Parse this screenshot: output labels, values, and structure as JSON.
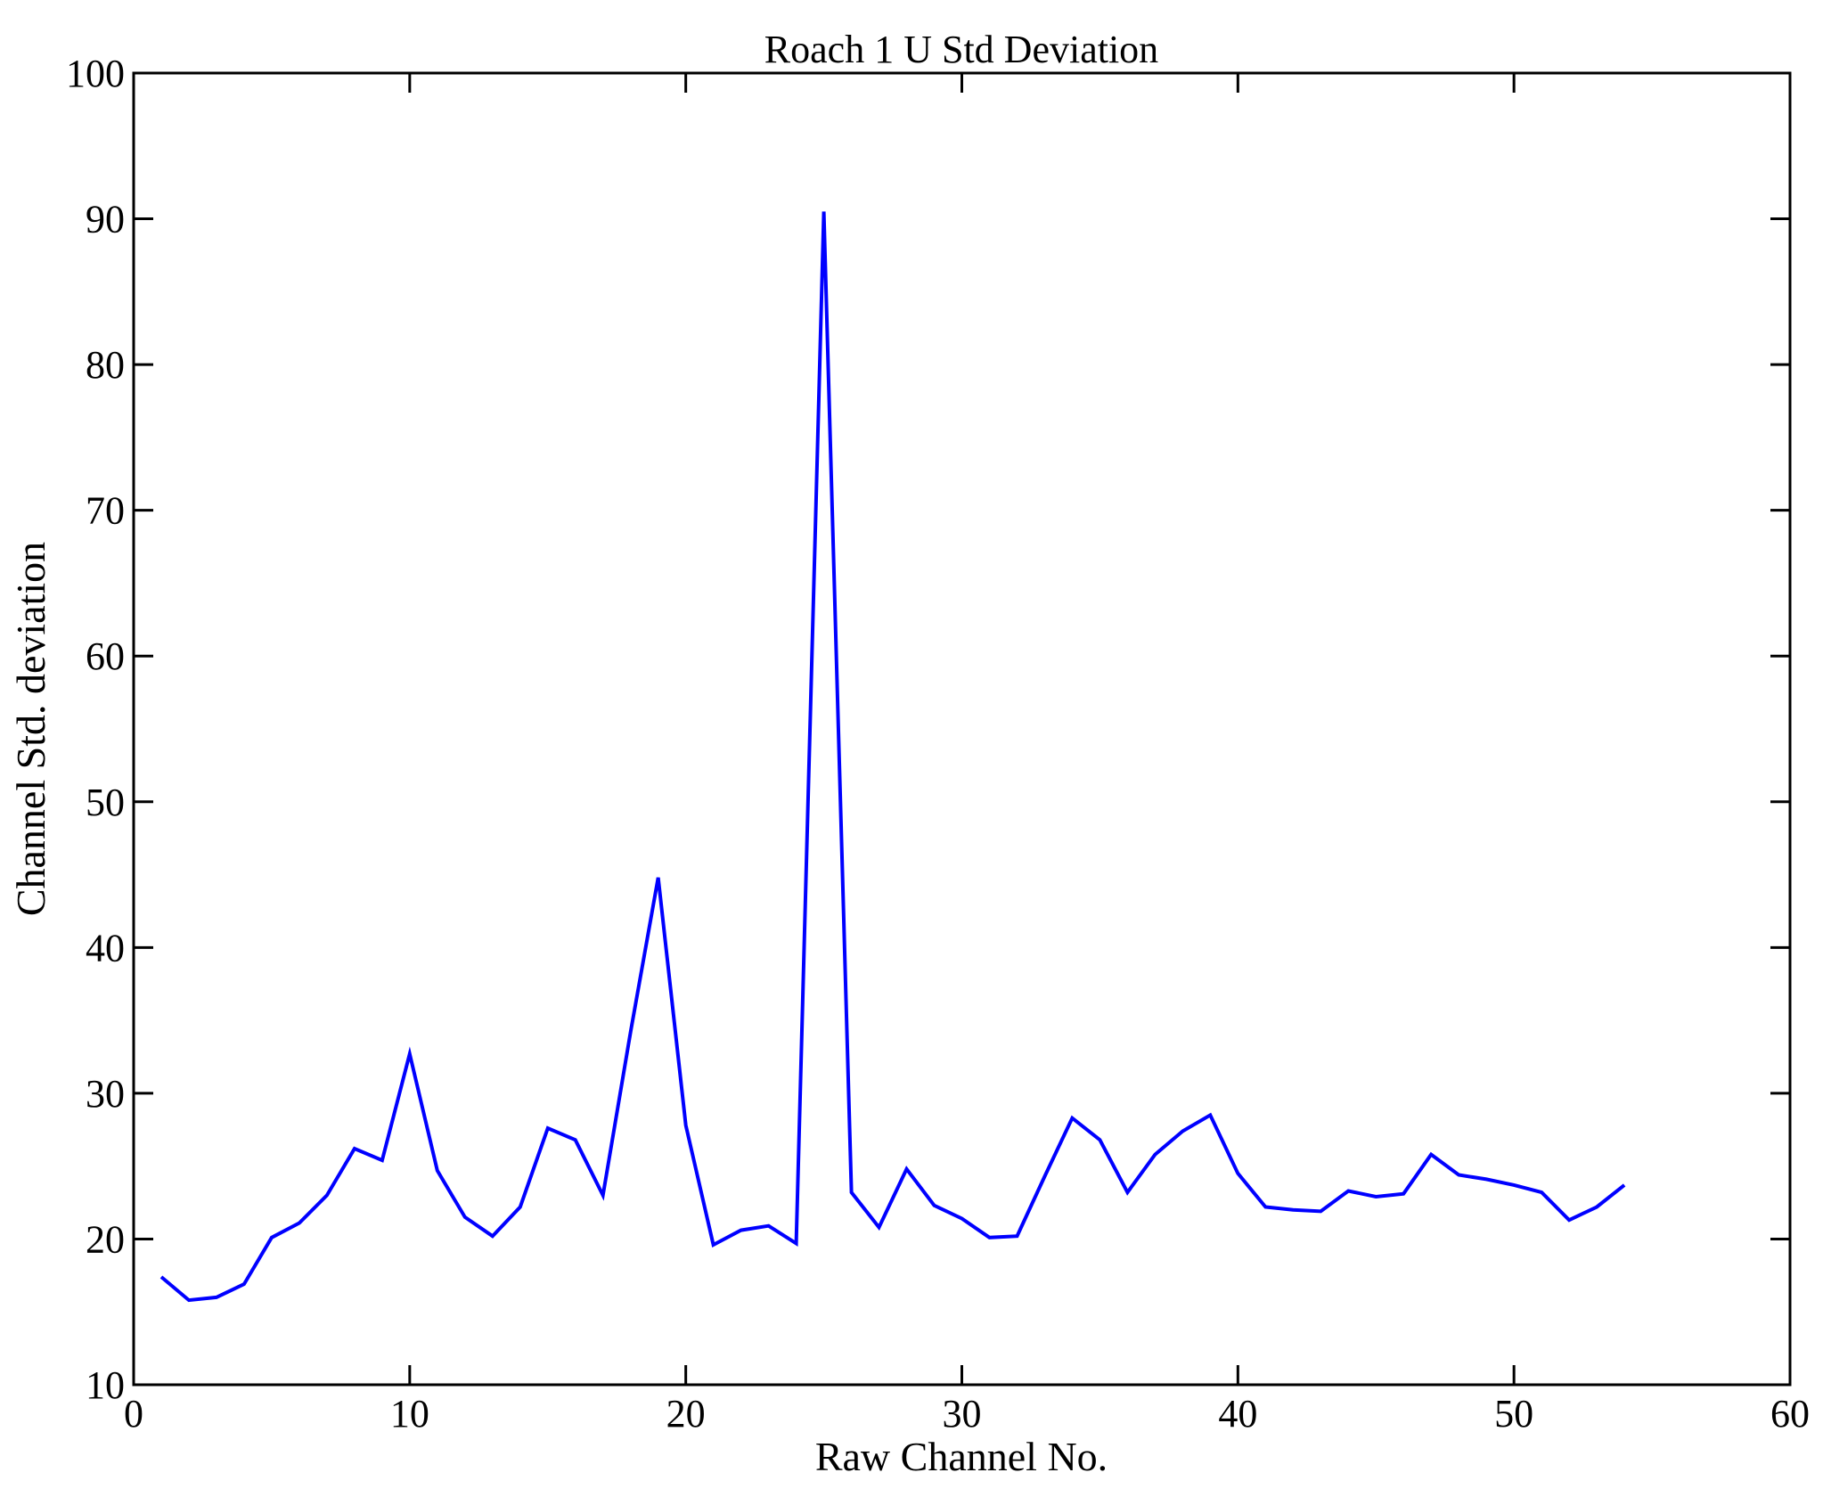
{
  "figure": {
    "background": "#ffffff"
  },
  "chart_data": {
    "type": "line",
    "title": "Roach 1 U Std Deviation",
    "xlabel": "Raw Channel No.",
    "ylabel": "Channel Std. deviation",
    "xlim": [
      0,
      60
    ],
    "ylim": [
      10,
      100
    ],
    "xticks": [
      0,
      10,
      20,
      30,
      40,
      50,
      60
    ],
    "yticks": [
      10,
      20,
      30,
      40,
      50,
      60,
      70,
      80,
      90,
      100
    ],
    "grid": false,
    "line_color": "#0000ff",
    "axis_color": "#000000",
    "series": [
      {
        "name": "Channel Std. deviation",
        "x": [
          1,
          2,
          3,
          4,
          5,
          6,
          7,
          8,
          9,
          10,
          11,
          12,
          13,
          14,
          15,
          16,
          17,
          18,
          19,
          20,
          21,
          22,
          23,
          24,
          25,
          26,
          27,
          28,
          29,
          30,
          31,
          32,
          33,
          34,
          35,
          36,
          37,
          38,
          39,
          40,
          41,
          42,
          43,
          44,
          45,
          46,
          47,
          48,
          49,
          50,
          51,
          52,
          53,
          54
        ],
        "y": [
          17.4,
          15.8,
          16.0,
          16.9,
          20.1,
          21.1,
          23.0,
          26.2,
          25.4,
          32.7,
          24.7,
          21.5,
          20.2,
          22.2,
          27.6,
          26.8,
          23.0,
          34.2,
          44.8,
          27.8,
          19.6,
          20.6,
          20.9,
          19.7,
          90.5,
          23.2,
          20.8,
          24.8,
          22.3,
          21.4,
          20.1,
          20.2,
          24.3,
          28.3,
          26.8,
          23.2,
          25.8,
          27.4,
          28.5,
          24.5,
          22.2,
          22.0,
          21.9,
          23.3,
          22.9,
          23.1,
          25.8,
          24.4,
          24.1,
          23.7,
          23.2,
          21.3,
          22.2,
          23.7
        ]
      }
    ]
  }
}
